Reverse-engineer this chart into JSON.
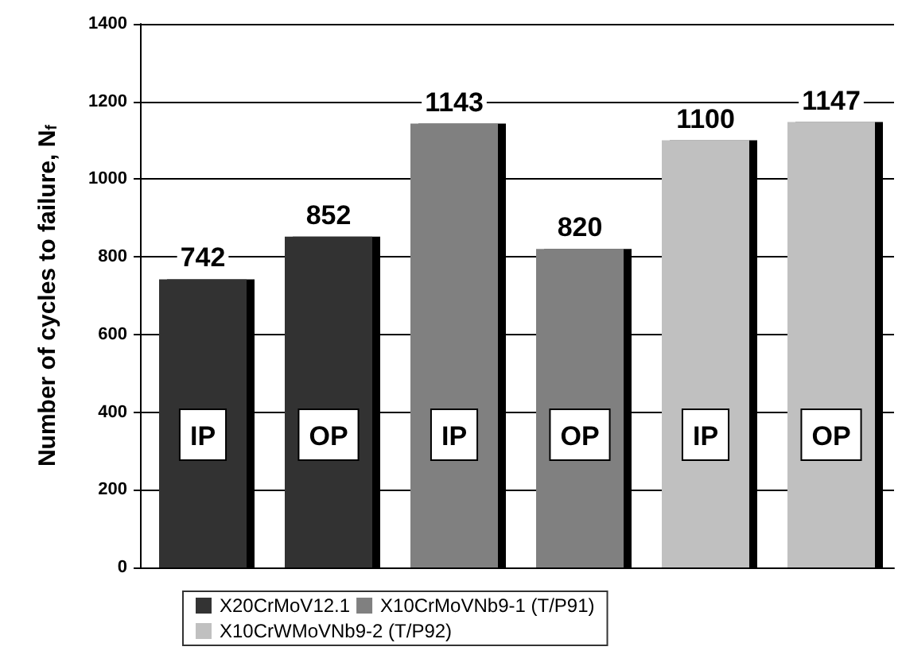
{
  "chart_data": {
    "type": "bar",
    "ylabel": "Number of cycles to failure, N$_{f}$",
    "categories": [
      "IP",
      "OP",
      "IP",
      "OP",
      "IP",
      "OP"
    ],
    "series": [
      {
        "name": "X20CrMoV12.1",
        "color": "#333333",
        "values": [
          742,
          852,
          null,
          null,
          null,
          null
        ]
      },
      {
        "name": "X10CrMoVNb9-1 (T/P91)",
        "color": "#808080",
        "values": [
          null,
          null,
          1143,
          820,
          null,
          null
        ]
      },
      {
        "name": "X10CrWMoVNb9-2 (T/P92)",
        "color": "#c0c0c0",
        "values": [
          null,
          null,
          null,
          null,
          1100,
          1147
        ]
      }
    ],
    "ylim": [
      0,
      1400
    ],
    "yticks": [
      0,
      200,
      400,
      600,
      800,
      1000,
      1200,
      1400
    ],
    "grid": "y",
    "legend": "bottom",
    "data_labels": true
  }
}
